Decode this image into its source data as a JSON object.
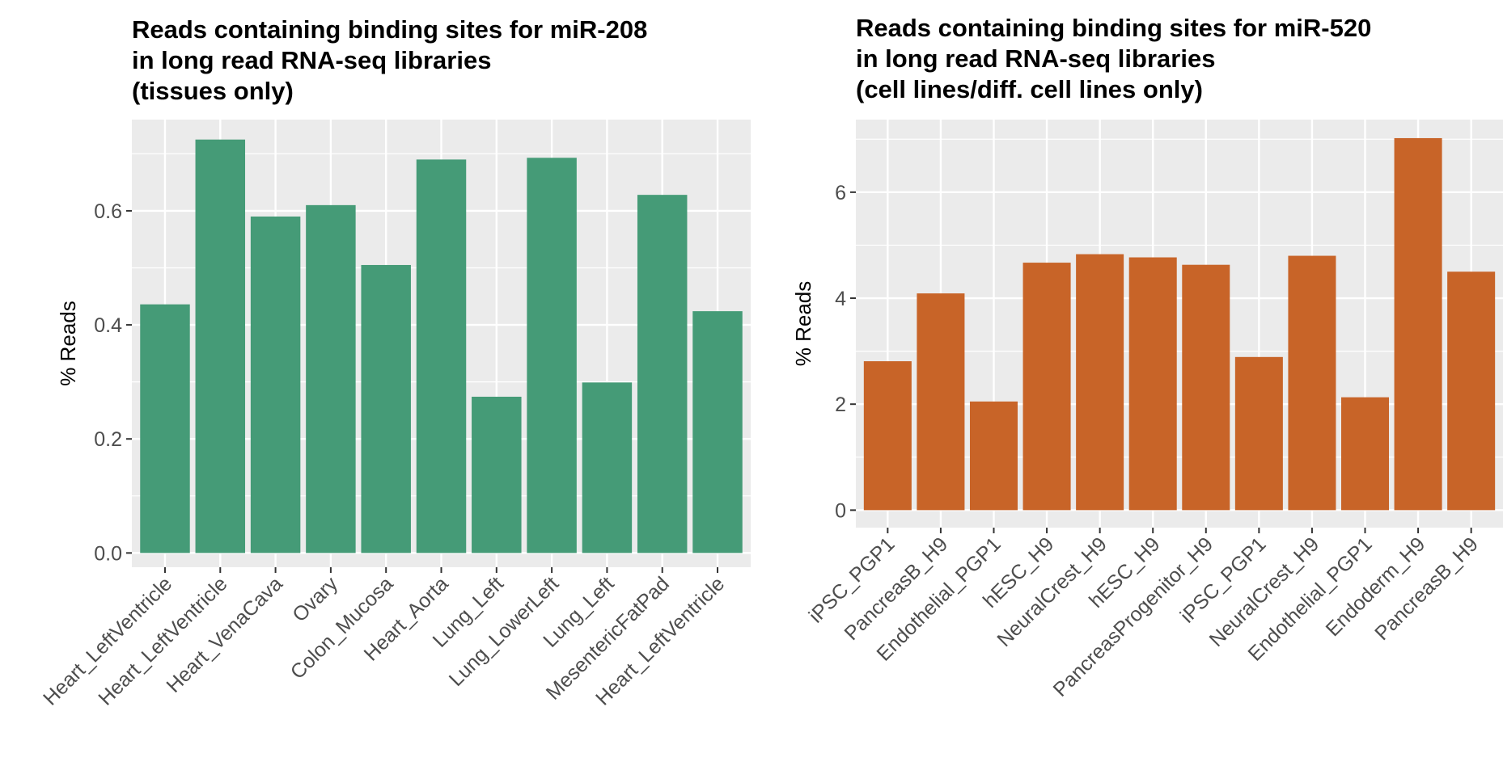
{
  "chart_data": [
    {
      "type": "bar",
      "title_lines": [
        "Reads containing binding sites for miR-208",
        "in long read RNA-seq libraries",
        "(tissues only)"
      ],
      "xlabel": "",
      "ylabel": "% Reads",
      "categories": [
        "Heart_LeftVentricle",
        "Heart_LeftVentricle",
        "Heart_VenaCava",
        "Ovary",
        "Colon_Mucosa",
        "Heart_Aorta",
        "Lung_Left",
        "Lung_LowerLeft",
        "Lung_Left",
        "MesentericFatPad",
        "Heart_LeftVentricle"
      ],
      "values": [
        0.436,
        0.725,
        0.59,
        0.61,
        0.505,
        0.69,
        0.274,
        0.693,
        0.299,
        0.628,
        0.424
      ],
      "ylim": [
        -0.025,
        0.76
      ],
      "yticks": [
        0.0,
        0.2,
        0.4,
        0.6
      ],
      "ytick_labels": [
        "0.0",
        "0.2",
        "0.4",
        "0.6"
      ],
      "color": "#459b77",
      "panel_bg": "#ebebeb",
      "grid": true
    },
    {
      "type": "bar",
      "title_lines": [
        "Reads containing binding sites for miR-520",
        "in long read RNA-seq libraries",
        "(cell lines/diff. cell lines only)"
      ],
      "xlabel": "",
      "ylabel": "% Reads",
      "categories": [
        "iPSC_PGP1",
        "PancreasB_H9",
        "Endothelial_PGP1",
        "hESC_H9",
        "NeuralCrest_H9",
        "hESC_H9",
        "PancreasProgenitor_H9",
        "iPSC_PGP1",
        "NeuralCrest_H9",
        "Endothelial_PGP1",
        "Endoderm_H9",
        "PancreasB_H9"
      ],
      "values": [
        2.81,
        4.09,
        2.05,
        4.67,
        4.83,
        4.77,
        4.63,
        2.89,
        4.8,
        2.13,
        7.02,
        4.5
      ],
      "ylim": [
        -0.33,
        7.37
      ],
      "yticks": [
        0,
        2,
        4,
        6
      ],
      "ytick_labels": [
        "0",
        "2",
        "4",
        "6"
      ],
      "color": "#c86428",
      "panel_bg": "#ebebeb",
      "grid": true
    }
  ]
}
